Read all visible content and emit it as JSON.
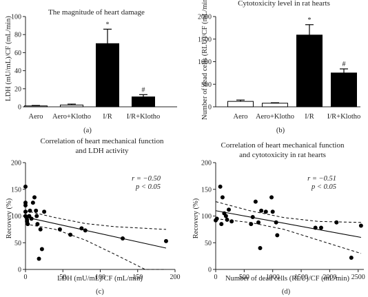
{
  "chart_data": [
    {
      "type": "bar",
      "panel": "(a)",
      "title": "The magnitude of heart damage",
      "ylabel": "LDH (mU/mL)/CF (mL/min)",
      "ylim": [
        0,
        100
      ],
      "yticks": [
        0,
        20,
        40,
        60,
        80,
        100
      ],
      "categories": [
        "Aero",
        "Aero+Klotho",
        "I/R",
        "I/R+Klotho"
      ],
      "values": [
        1,
        2,
        70,
        11
      ],
      "errors": [
        0.5,
        1,
        16,
        2.5
      ],
      "fills": [
        "white",
        "white",
        "black",
        "black"
      ],
      "annotations": [
        "",
        "",
        "*",
        "#"
      ]
    },
    {
      "type": "bar",
      "panel": "(b)",
      "title": "Cytotoxicity level in rat hearts",
      "ylabel": "Number of dead cells (RLU)/CF (mL/min)",
      "ylim": [
        0,
        2000
      ],
      "yticks": [
        0,
        500,
        1000,
        1500,
        2000
      ],
      "categories": [
        "Aero",
        "Aero+Klotho",
        "I/R",
        "I/R+Klotho"
      ],
      "values": [
        120,
        80,
        1590,
        750
      ],
      "errors": [
        30,
        10,
        230,
        90
      ],
      "fills": [
        "white",
        "white",
        "black",
        "black"
      ],
      "annotations": [
        "",
        "",
        "*",
        "#"
      ]
    },
    {
      "type": "scatter",
      "panel": "(c)",
      "title": [
        "Correlation of heart mechanical function",
        "and LDH activity"
      ],
      "xlabel": "LDH (mU/mL)/CF (mL/min)",
      "ylabel": "Recovery (%)",
      "xlim": [
        0,
        200
      ],
      "ylim": [
        0,
        200
      ],
      "xticks": [
        0,
        50,
        100,
        150,
        200
      ],
      "yticks": [
        0,
        50,
        100,
        150,
        200
      ],
      "stats": [
        "r = −0.50",
        "p < 0.05"
      ],
      "points": [
        [
          0,
          155
        ],
        [
          0,
          125
        ],
        [
          0,
          120
        ],
        [
          0,
          108
        ],
        [
          0,
          100
        ],
        [
          1,
          98
        ],
        [
          2,
          93
        ],
        [
          2,
          90
        ],
        [
          3,
          85
        ],
        [
          5,
          100
        ],
        [
          6,
          110
        ],
        [
          8,
          95
        ],
        [
          10,
          125
        ],
        [
          12,
          135
        ],
        [
          14,
          110
        ],
        [
          15,
          100
        ],
        [
          16,
          85
        ],
        [
          18,
          20
        ],
        [
          20,
          75
        ],
        [
          22,
          38
        ],
        [
          25,
          108
        ],
        [
          46,
          75
        ],
        [
          60,
          65
        ],
        [
          75,
          77
        ],
        [
          80,
          73
        ],
        [
          130,
          58
        ],
        [
          188,
          53
        ]
      ],
      "fit": [
        [
          0,
          98
        ],
        [
          188,
          40
        ]
      ],
      "ci_upper": [
        [
          0,
          110
        ],
        [
          40,
          97
        ],
        [
          80,
          86
        ],
        [
          120,
          80
        ],
        [
          160,
          77
        ],
        [
          188,
          75
        ]
      ],
      "ci_lower": [
        [
          0,
          85
        ],
        [
          40,
          75
        ],
        [
          80,
          55
        ],
        [
          120,
          28
        ],
        [
          160,
          0
        ],
        [
          188,
          -18
        ]
      ]
    },
    {
      "type": "scatter",
      "panel": "(d)",
      "title": [
        "Correlation of heart mechanical function",
        "and cytotoxicity in rat hearts"
      ],
      "xlabel": "Number of dead cells (RLU)/CF (mL/min)",
      "ylabel": "Recovery (%)",
      "xlim": [
        0,
        2600
      ],
      "ylim": [
        0,
        200
      ],
      "xticks": [
        0,
        500,
        1000,
        1500,
        2000,
        2500
      ],
      "yticks": [
        0,
        50,
        100,
        150,
        200
      ],
      "stats": [
        "r = −0.51",
        "p < 0.05"
      ],
      "points": [
        [
          0,
          92
        ],
        [
          20,
          95
        ],
        [
          80,
          155
        ],
        [
          100,
          85
        ],
        [
          120,
          135
        ],
        [
          150,
          105
        ],
        [
          180,
          100
        ],
        [
          200,
          93
        ],
        [
          230,
          112
        ],
        [
          280,
          90
        ],
        [
          620,
          85
        ],
        [
          650,
          98
        ],
        [
          700,
          127
        ],
        [
          750,
          88
        ],
        [
          780,
          40
        ],
        [
          800,
          110
        ],
        [
          880,
          108
        ],
        [
          980,
          135
        ],
        [
          1000,
          108
        ],
        [
          1060,
          88
        ],
        [
          1080,
          64
        ],
        [
          1750,
          78
        ],
        [
          1850,
          78
        ],
        [
          2120,
          88
        ],
        [
          2380,
          22
        ],
        [
          2550,
          82
        ]
      ],
      "fit": [
        [
          0,
          110
        ],
        [
          2550,
          60
        ]
      ],
      "ci_upper": [
        [
          0,
          127
        ],
        [
          600,
          110
        ],
        [
          1200,
          97
        ],
        [
          1800,
          90
        ],
        [
          2550,
          88
        ]
      ],
      "ci_lower": [
        [
          0,
          95
        ],
        [
          600,
          88
        ],
        [
          1200,
          75
        ],
        [
          1800,
          55
        ],
        [
          2550,
          30
        ]
      ]
    }
  ]
}
